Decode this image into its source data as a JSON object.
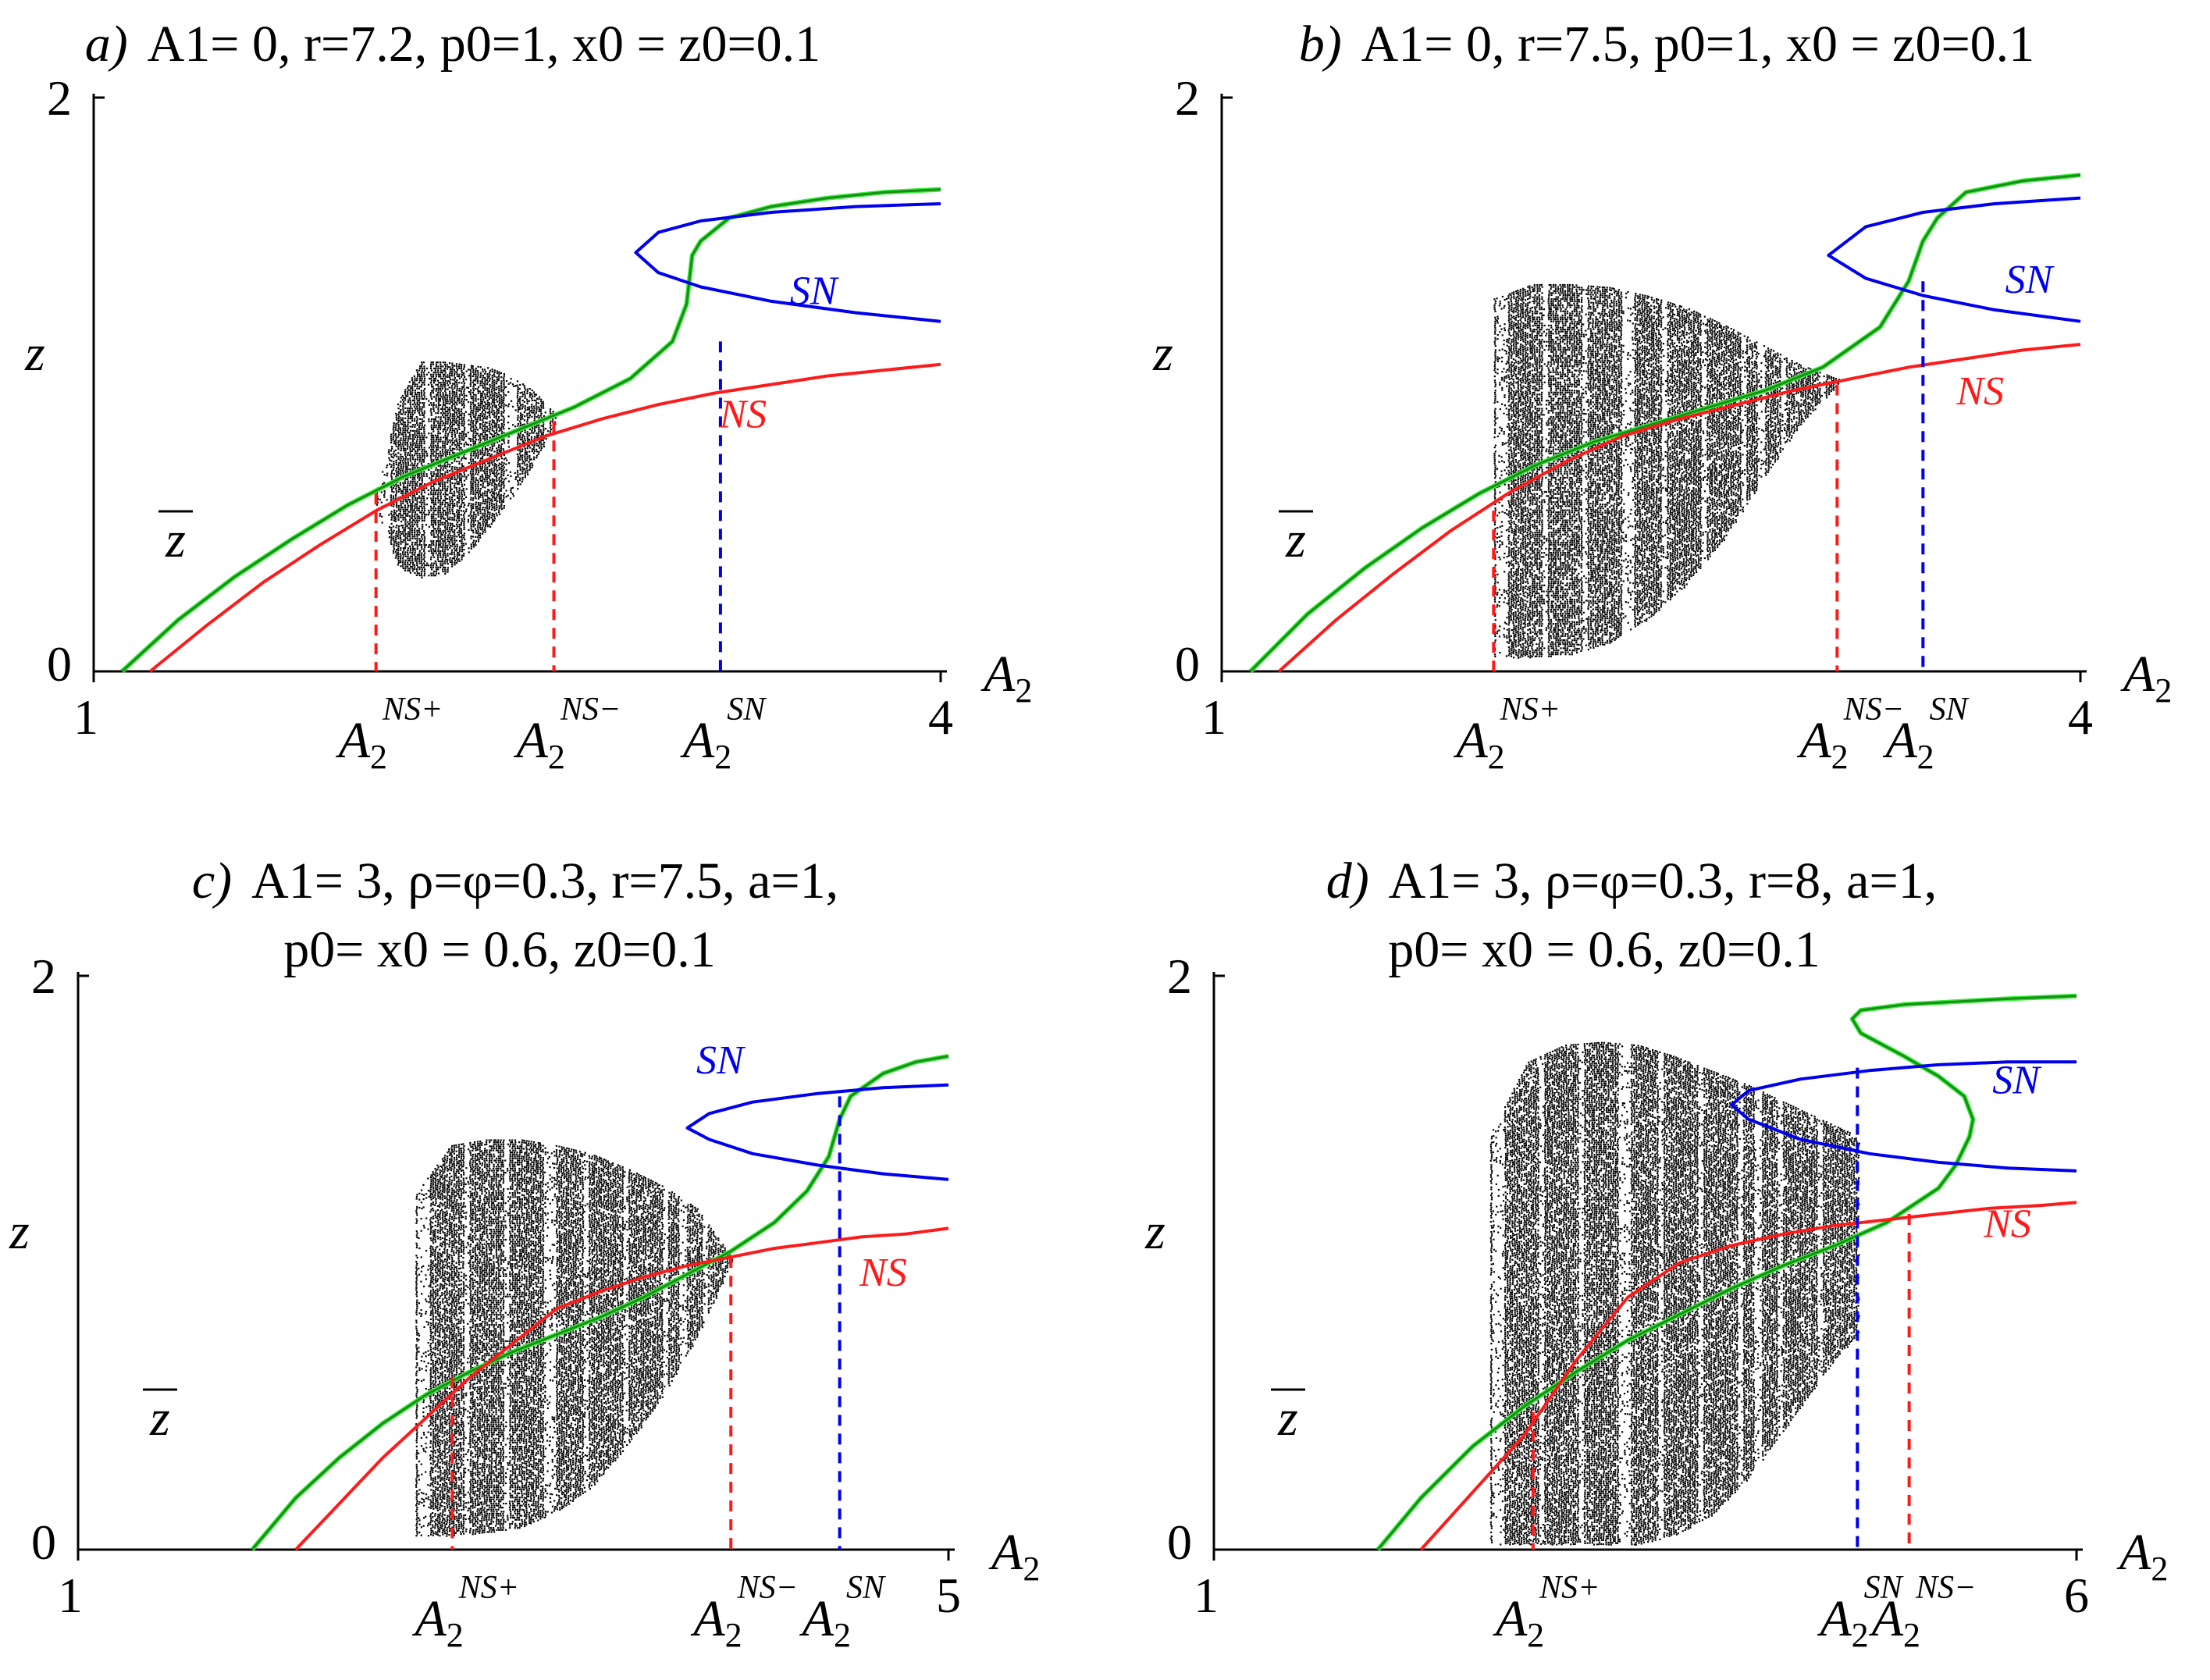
{
  "chart_data": [
    {
      "type": "line",
      "panel": "a",
      "title": {
        "letter": "a)",
        "text": "A1= 0, r=7.2, p0=1, x0 = z0=0.1"
      },
      "xlabel": "A2",
      "ylabel": "z",
      "zbar_label": "z",
      "xlim": [
        1,
        4
      ],
      "ylim": [
        0,
        2
      ],
      "x_ticks": [
        "1",
        "4"
      ],
      "y_ticks": [
        "0",
        "2"
      ],
      "series": [
        {
          "name": "green",
          "color": "#1a8c1a",
          "x": [
            1.1,
            1.3,
            1.5,
            1.7,
            1.9,
            2.1,
            2.3,
            2.5,
            2.7,
            2.9,
            3.05,
            3.1,
            3.12,
            3.15,
            3.25,
            3.4,
            3.6,
            3.8,
            4.0
          ],
          "y": [
            0.0,
            0.18,
            0.33,
            0.46,
            0.58,
            0.68,
            0.76,
            0.84,
            0.92,
            1.02,
            1.15,
            1.28,
            1.45,
            1.5,
            1.58,
            1.62,
            1.65,
            1.67,
            1.68
          ]
        },
        {
          "name": "NS",
          "color": "#ff1a1a",
          "x": [
            1.2,
            1.4,
            1.6,
            1.8,
            2.0,
            2.2,
            2.4,
            2.6,
            2.8,
            3.0,
            3.2,
            3.4,
            3.6,
            3.8,
            4.0
          ],
          "y": [
            0.0,
            0.16,
            0.31,
            0.44,
            0.56,
            0.66,
            0.74,
            0.82,
            0.88,
            0.93,
            0.97,
            1.0,
            1.03,
            1.05,
            1.07
          ]
        },
        {
          "name": "SN",
          "color": "#0000ee",
          "x": [
            4.0,
            3.7,
            3.4,
            3.15,
            3.0,
            2.92,
            3.0,
            3.15,
            3.4,
            3.7,
            4.0
          ],
          "y": [
            1.22,
            1.25,
            1.29,
            1.34,
            1.39,
            1.46,
            1.53,
            1.57,
            1.6,
            1.62,
            1.63
          ]
        }
      ],
      "chaotic_region": {
        "x_start": 2.0,
        "x_end": 2.63,
        "ylow": [
          0.56,
          0.36,
          0.33,
          0.34,
          0.4,
          0.5,
          0.6,
          0.72,
          0.86
        ],
        "yhigh": [
          0.64,
          0.95,
          1.08,
          1.08,
          1.07,
          1.06,
          1.03,
          0.98,
          0.9
        ]
      },
      "markers": [
        {
          "x": 2.0,
          "y": 0.62,
          "color": "#ff1a1a",
          "label": "A2",
          "sup": "NS+"
        },
        {
          "x": 2.63,
          "y": 0.87,
          "color": "#ff1a1a",
          "label": "A2",
          "sup": "NS−"
        },
        {
          "x": 3.22,
          "y": 1.15,
          "color": "#0000ee",
          "label": "A2",
          "sup": "SN"
        }
      ],
      "curve_labels": [
        {
          "text": "SN",
          "color": "#0000ee",
          "x": 3.55,
          "y": 1.28
        },
        {
          "text": "NS",
          "color": "#ff1a1a",
          "x": 3.3,
          "y": 0.85
        }
      ]
    },
    {
      "type": "line",
      "panel": "b",
      "title": {
        "letter": "b)",
        "text": "A1= 0, r=7.5, p0=1, x0 = z0=0.1"
      },
      "xlabel": "A2",
      "ylabel": "z",
      "zbar_label": "z",
      "xlim": [
        1,
        4
      ],
      "ylim": [
        0,
        2
      ],
      "x_ticks": [
        "1",
        "4"
      ],
      "y_ticks": [
        "0",
        "2"
      ],
      "series": [
        {
          "name": "green",
          "color": "#1a8c1a",
          "x": [
            1.1,
            1.3,
            1.5,
            1.7,
            1.9,
            2.1,
            2.3,
            2.5,
            2.7,
            2.9,
            3.1,
            3.3,
            3.4,
            3.45,
            3.5,
            3.6,
            3.8,
            4.0
          ],
          "y": [
            0.0,
            0.2,
            0.36,
            0.5,
            0.62,
            0.72,
            0.8,
            0.86,
            0.92,
            0.98,
            1.06,
            1.2,
            1.36,
            1.5,
            1.58,
            1.67,
            1.71,
            1.73
          ]
        },
        {
          "name": "NS",
          "color": "#ff1a1a",
          "x": [
            1.2,
            1.4,
            1.6,
            1.8,
            2.0,
            2.2,
            2.4,
            2.6,
            2.8,
            3.0,
            3.2,
            3.4,
            3.6,
            3.8,
            4.0
          ],
          "y": [
            0.0,
            0.18,
            0.34,
            0.49,
            0.62,
            0.73,
            0.82,
            0.88,
            0.93,
            0.98,
            1.02,
            1.06,
            1.09,
            1.12,
            1.14
          ]
        },
        {
          "name": "SN",
          "color": "#0000ee",
          "x": [
            4.0,
            3.7,
            3.45,
            3.25,
            3.12,
            3.25,
            3.45,
            3.7,
            4.0
          ],
          "y": [
            1.22,
            1.26,
            1.31,
            1.37,
            1.45,
            1.55,
            1.6,
            1.63,
            1.65
          ]
        }
      ],
      "chaotic_region": {
        "x_start": 1.95,
        "x_end": 3.15,
        "ylow": [
          0.05,
          0.05,
          0.06,
          0.1,
          0.18,
          0.3,
          0.46,
          0.66,
          0.86,
          1.0
        ],
        "yhigh": [
          1.3,
          1.35,
          1.35,
          1.34,
          1.31,
          1.27,
          1.21,
          1.14,
          1.07,
          1.02
        ]
      },
      "markers": [
        {
          "x": 1.95,
          "y": 0.56,
          "color": "#ff1a1a",
          "label": "A2",
          "sup": "NS+"
        },
        {
          "x": 3.15,
          "y": 1.0,
          "color": "#ff1a1a",
          "label": "A2",
          "sup": "NS−"
        },
        {
          "x": 3.45,
          "y": 1.36,
          "color": "#0000ee",
          "label": "A2",
          "sup": "SN"
        }
      ],
      "curve_labels": [
        {
          "text": "SN",
          "color": "#0000ee",
          "x": 3.82,
          "y": 1.32
        },
        {
          "text": "NS",
          "color": "#ff1a1a",
          "x": 3.65,
          "y": 0.93
        }
      ]
    },
    {
      "type": "line",
      "panel": "c",
      "title": {
        "letter": "c)",
        "text": "A1= 3, ρ=φ=0.3, r=7.5, a=1,",
        "line2": "p0= x0 = 0.6, z0=0.1"
      },
      "xlabel": "A2",
      "ylabel": "z",
      "zbar_label": "z",
      "xlim": [
        1,
        5
      ],
      "ylim": [
        0,
        2
      ],
      "x_ticks": [
        "1",
        "5"
      ],
      "y_ticks": [
        "0",
        "2"
      ],
      "series": [
        {
          "name": "green",
          "color": "#1a8c1a",
          "x": [
            1.8,
            2.0,
            2.2,
            2.4,
            2.6,
            2.8,
            3.0,
            3.2,
            3.4,
            3.6,
            3.8,
            4.0,
            4.2,
            4.35,
            4.45,
            4.5,
            4.55,
            4.7,
            4.85,
            5.0
          ],
          "y": [
            0.0,
            0.18,
            0.32,
            0.44,
            0.54,
            0.62,
            0.69,
            0.75,
            0.81,
            0.88,
            0.96,
            1.04,
            1.14,
            1.25,
            1.37,
            1.5,
            1.58,
            1.66,
            1.7,
            1.72
          ]
        },
        {
          "name": "NS",
          "color": "#ff1a1a",
          "x": [
            2.0,
            2.2,
            2.4,
            2.6,
            2.8,
            3.0,
            3.2,
            3.4,
            3.6,
            3.8,
            4.0,
            4.2,
            4.4,
            4.6,
            4.8,
            5.0
          ],
          "y": [
            0.0,
            0.16,
            0.32,
            0.46,
            0.6,
            0.72,
            0.84,
            0.9,
            0.95,
            0.99,
            1.02,
            1.05,
            1.07,
            1.09,
            1.1,
            1.12
          ]
        },
        {
          "name": "SN",
          "color": "#0000ee",
          "x": [
            5.0,
            4.7,
            4.4,
            4.1,
            3.9,
            3.8,
            3.9,
            4.1,
            4.4,
            4.7,
            5.0
          ],
          "y": [
            1.29,
            1.31,
            1.34,
            1.38,
            1.43,
            1.47,
            1.52,
            1.56,
            1.59,
            1.61,
            1.62
          ]
        }
      ],
      "chaotic_region": {
        "x_start": 2.55,
        "x_end": 4.0,
        "ylow": [
          0.05,
          0.05,
          0.06,
          0.08,
          0.13,
          0.22,
          0.36,
          0.53,
          0.74,
          1.0
        ],
        "yhigh": [
          1.24,
          1.41,
          1.43,
          1.43,
          1.41,
          1.38,
          1.33,
          1.27,
          1.19,
          1.02
        ]
      },
      "markers": [
        {
          "x": 2.72,
          "y": 0.6,
          "color": "#ff1a1a",
          "label": "A2",
          "sup": "NS+"
        },
        {
          "x": 4.0,
          "y": 1.02,
          "color": "#ff1a1a",
          "label": "A2",
          "sup": "NS−"
        },
        {
          "x": 4.5,
          "y": 1.58,
          "color": "#0000ee",
          "label": "A2",
          "sup": "SN"
        }
      ],
      "curve_labels": [
        {
          "text": "SN",
          "color": "#0000ee",
          "x": 3.95,
          "y": 1.66
        },
        {
          "text": "NS",
          "color": "#ff1a1a",
          "x": 4.7,
          "y": 0.92
        }
      ]
    },
    {
      "type": "line",
      "panel": "d",
      "title": {
        "letter": "d)",
        "text": "A1= 3, ρ=φ=0.3, r=8, a=1,",
        "line2": "p0= x0 = 0.6, z0=0.1"
      },
      "xlabel": "A2",
      "ylabel": "z",
      "zbar_label": "z",
      "xlim": [
        1,
        6
      ],
      "ylim": [
        0,
        2
      ],
      "x_ticks": [
        "1",
        "6"
      ],
      "y_ticks": [
        "0",
        "2"
      ],
      "series": [
        {
          "name": "green",
          "color": "#1a8c1a",
          "x": [
            1.95,
            2.2,
            2.5,
            2.8,
            3.1,
            3.4,
            3.7,
            4.0,
            4.3,
            4.6,
            4.9,
            5.2,
            5.3,
            5.38,
            5.4,
            5.35,
            5.2,
            5.0,
            4.75,
            4.7,
            4.75,
            5.0,
            5.3,
            5.6,
            6.0
          ],
          "y": [
            0.0,
            0.18,
            0.36,
            0.5,
            0.62,
            0.73,
            0.82,
            0.91,
            0.99,
            1.06,
            1.14,
            1.26,
            1.34,
            1.44,
            1.5,
            1.58,
            1.65,
            1.72,
            1.8,
            1.85,
            1.88,
            1.9,
            1.91,
            1.92,
            1.93
          ]
        },
        {
          "name": "NS",
          "color": "#ff1a1a",
          "x": [
            2.2,
            2.5,
            2.8,
            3.1,
            3.4,
            3.7,
            4.0,
            4.3,
            4.6,
            4.9,
            5.2,
            5.5,
            5.8,
            6.0
          ],
          "y": [
            0.0,
            0.2,
            0.4,
            0.66,
            0.88,
            1.0,
            1.06,
            1.1,
            1.13,
            1.15,
            1.17,
            1.19,
            1.2,
            1.21
          ]
        },
        {
          "name": "SN",
          "color": "#0000ee",
          "x": [
            6.0,
            5.6,
            5.2,
            4.8,
            4.4,
            4.1,
            4.0,
            4.1,
            4.4,
            4.8,
            5.2,
            5.6,
            6.0
          ],
          "y": [
            1.32,
            1.33,
            1.35,
            1.38,
            1.43,
            1.5,
            1.55,
            1.6,
            1.64,
            1.67,
            1.69,
            1.7,
            1.7
          ]
        }
      ],
      "chaotic_region": {
        "x_start": 2.6,
        "x_end": 4.73,
        "ylow": [
          0.02,
          0.02,
          0.02,
          0.02,
          0.02,
          0.05,
          0.12,
          0.25,
          0.42,
          0.6,
          0.76
        ],
        "yhigh": [
          1.45,
          1.7,
          1.76,
          1.77,
          1.76,
          1.72,
          1.67,
          1.62,
          1.56,
          1.5,
          1.44
        ]
      },
      "markers": [
        {
          "x": 2.85,
          "y": 0.48,
          "color": "#ff1a1a",
          "label": "A2",
          "sup": "NS+"
        },
        {
          "x": 4.73,
          "y": 1.68,
          "color": "#0000ee",
          "label": "A2",
          "sup": "SN"
        },
        {
          "x": 5.03,
          "y": 1.17,
          "color": "#ff1a1a",
          "label": "A2",
          "sup": "NS−"
        }
      ],
      "curve_labels": [
        {
          "text": "SN",
          "color": "#0000ee",
          "x": 5.65,
          "y": 1.59
        },
        {
          "text": "NS",
          "color": "#ff1a1a",
          "x": 5.6,
          "y": 1.09
        }
      ]
    }
  ]
}
